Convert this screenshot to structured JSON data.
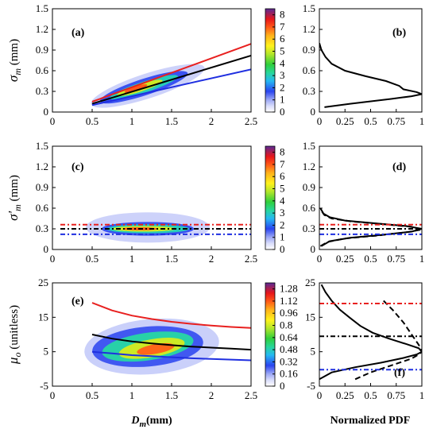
{
  "chart_data": [
    {
      "id": "a",
      "type": "heatmap",
      "panel_label": "(a)",
      "ylabel": "σ_m (mm)",
      "xlim": [
        0,
        2.5
      ],
      "ylim": [
        0,
        1.5
      ],
      "xticks": [
        "0",
        "0.5",
        "1",
        "1.5",
        "2",
        "2.5"
      ],
      "yticks": [
        "0",
        "0.3",
        "0.6",
        "0.9",
        "1.2",
        "1.5"
      ],
      "colorbar_ticks": [
        "0",
        "1",
        "2",
        "3",
        "4",
        "5",
        "6",
        "7",
        "8"
      ],
      "colorbar_range": [
        0,
        8.5
      ],
      "density_blobs": [
        {
          "cx": 1.2,
          "cy": 0.38,
          "rx": 0.75,
          "ry": 0.18,
          "rot": -18,
          "level": 0.6
        },
        {
          "cx": 1.15,
          "cy": 0.36,
          "rx": 0.58,
          "ry": 0.12,
          "rot": -18,
          "level": 1.6
        },
        {
          "cx": 1.15,
          "cy": 0.36,
          "rx": 0.45,
          "ry": 0.08,
          "rot": -18,
          "level": 3.0
        },
        {
          "cx": 1.1,
          "cy": 0.35,
          "rx": 0.3,
          "ry": 0.055,
          "rot": -18,
          "level": 5.0
        },
        {
          "cx": 1.05,
          "cy": 0.34,
          "rx": 0.15,
          "ry": 0.035,
          "rot": -18,
          "level": 7.0
        }
      ],
      "series": [
        {
          "color": "#e8201f",
          "x": [
            0.5,
            2.5
          ],
          "y": [
            0.15,
            0.99
          ]
        },
        {
          "color": "#000000",
          "x": [
            0.5,
            2.5
          ],
          "y": [
            0.12,
            0.82
          ]
        },
        {
          "color": "#1f2fe0",
          "x": [
            0.5,
            2.5
          ],
          "y": [
            0.1,
            0.62
          ]
        }
      ]
    },
    {
      "id": "b",
      "type": "line",
      "panel_label": "(b)",
      "xlim": [
        0,
        1
      ],
      "ylim": [
        0,
        1.5
      ],
      "xticks": [
        "0",
        "0.25",
        "0.5",
        "0.75",
        "1"
      ],
      "yticks": [
        "0",
        "0.3",
        "0.6",
        "0.9",
        "1.2",
        "1.5"
      ],
      "series": [
        {
          "color": "#000000",
          "dash": "none",
          "x": [
            0.05,
            0.3,
            0.7,
            0.9,
            1.0,
            0.95,
            0.82,
            0.78,
            0.65,
            0.45,
            0.25,
            0.12,
            0.06,
            0.02,
            0.0
          ],
          "y": [
            0.07,
            0.12,
            0.19,
            0.23,
            0.26,
            0.29,
            0.33,
            0.38,
            0.45,
            0.52,
            0.6,
            0.7,
            0.8,
            0.9,
            1.0
          ]
        }
      ]
    },
    {
      "id": "c",
      "type": "heatmap",
      "panel_label": "(c)",
      "ylabel": "σ'_m (mm)",
      "xlim": [
        0,
        2.5
      ],
      "ylim": [
        0,
        1.5
      ],
      "xticks": [
        "0",
        "0.5",
        "1",
        "1.5",
        "2",
        "2.5"
      ],
      "yticks": [
        "0",
        "0.3",
        "0.6",
        "0.9",
        "1.2",
        "1.5"
      ],
      "colorbar_ticks": [
        "0",
        "1",
        "2",
        "3",
        "4",
        "5",
        "6",
        "7",
        "8"
      ],
      "colorbar_range": [
        0,
        8.5
      ],
      "density_blobs": [
        {
          "cx": 1.2,
          "cy": 0.32,
          "rx": 0.78,
          "ry": 0.22,
          "rot": 0,
          "level": 0.6
        },
        {
          "cx": 1.2,
          "cy": 0.3,
          "rx": 0.58,
          "ry": 0.1,
          "rot": 0,
          "level": 1.6
        },
        {
          "cx": 1.2,
          "cy": 0.3,
          "rx": 0.52,
          "ry": 0.065,
          "rot": 0,
          "level": 3.0
        },
        {
          "cx": 1.15,
          "cy": 0.3,
          "rx": 0.4,
          "ry": 0.04,
          "rot": 0,
          "level": 5.0
        },
        {
          "cx": 1.1,
          "cy": 0.3,
          "rx": 0.22,
          "ry": 0.022,
          "rot": 0,
          "level": 7.0
        }
      ],
      "series": [
        {
          "color": "#e8201f",
          "dash": "6,3,2,3",
          "x": [
            0.1,
            2.5
          ],
          "y": [
            0.36,
            0.36
          ]
        },
        {
          "color": "#000000",
          "dash": "6,3,2,3",
          "x": [
            0.1,
            2.5
          ],
          "y": [
            0.3,
            0.3
          ]
        },
        {
          "color": "#1f2fe0",
          "dash": "6,3,2,3",
          "x": [
            0.1,
            2.5
          ],
          "y": [
            0.22,
            0.22
          ]
        }
      ]
    },
    {
      "id": "d",
      "type": "line",
      "panel_label": "(d)",
      "xlim": [
        0,
        1
      ],
      "ylim": [
        0,
        1.5
      ],
      "xticks": [
        "0",
        "0.25",
        "0.5",
        "0.75",
        "1"
      ],
      "yticks": [
        "0",
        "0.3",
        "0.6",
        "0.9",
        "1.2",
        "1.5"
      ],
      "series": [
        {
          "color": "#000000",
          "dash": "none",
          "x": [
            0.02,
            0.1,
            0.3,
            0.6,
            0.9,
            1.0,
            0.85,
            0.55,
            0.25,
            0.1,
            0.04,
            0.01
          ],
          "y": [
            0.05,
            0.12,
            0.17,
            0.21,
            0.26,
            0.3,
            0.34,
            0.38,
            0.42,
            0.47,
            0.52,
            0.6
          ]
        },
        {
          "color": "#000000",
          "dash": "7,4",
          "x": [
            0.01,
            0.08,
            0.25,
            0.55,
            0.85,
            1.0,
            0.9,
            0.6,
            0.3,
            0.12,
            0.05,
            0.01
          ],
          "y": [
            0.05,
            0.11,
            0.16,
            0.2,
            0.25,
            0.29,
            0.33,
            0.37,
            0.41,
            0.45,
            0.5,
            0.58
          ]
        },
        {
          "color": "#e8201f",
          "dash": "6,3,2,3",
          "x": [
            0,
            1
          ],
          "y": [
            0.36,
            0.36
          ]
        },
        {
          "color": "#000000",
          "dash": "6,3,2,3",
          "x": [
            0,
            1
          ],
          "y": [
            0.3,
            0.3
          ]
        },
        {
          "color": "#1f2fe0",
          "dash": "6,3,2,3",
          "x": [
            0,
            1
          ],
          "y": [
            0.22,
            0.22
          ]
        }
      ]
    },
    {
      "id": "e",
      "type": "heatmap",
      "panel_label": "(e)",
      "ylabel": "μ_o (unitless)",
      "xlabel": "D_m(mm)",
      "xlim": [
        0,
        2.5
      ],
      "ylim": [
        -5,
        25
      ],
      "xticks": [
        "0",
        "0.5",
        "1",
        "1.5",
        "2",
        "2.5"
      ],
      "yticks": [
        "-5",
        "5",
        "15",
        "25"
      ],
      "ytick_values": [
        -5,
        5,
        15,
        25
      ],
      "colorbar_ticks": [
        "0",
        "0.16",
        "0.32",
        "0.48",
        "0.64",
        "0.8",
        "0.96",
        "1.12",
        "1.28"
      ],
      "colorbar_range": [
        0,
        1.36
      ],
      "density_blobs": [
        {
          "cx": 1.25,
          "cy": 6.5,
          "rx": 0.85,
          "ry": 8.0,
          "rot": -5,
          "level": 0.1
        },
        {
          "cx": 1.2,
          "cy": 6.5,
          "rx": 0.7,
          "ry": 5.8,
          "rot": -5,
          "level": 0.25
        },
        {
          "cx": 1.2,
          "cy": 6.5,
          "rx": 0.58,
          "ry": 4.0,
          "rot": -8,
          "level": 0.5
        },
        {
          "cx": 1.25,
          "cy": 6.0,
          "rx": 0.42,
          "ry": 2.6,
          "rot": -10,
          "level": 0.8
        },
        {
          "cx": 1.3,
          "cy": 5.8,
          "rx": 0.24,
          "ry": 1.4,
          "rot": -10,
          "level": 1.1
        }
      ],
      "series": [
        {
          "color": "#e8201f",
          "x": [
            0.5,
            0.75,
            1.0,
            1.25,
            1.5,
            1.75,
            2.0,
            2.25,
            2.5
          ],
          "y": [
            19.2,
            17.0,
            15.5,
            14.5,
            13.7,
            13.1,
            12.6,
            12.2,
            11.9
          ]
        },
        {
          "color": "#000000",
          "x": [
            0.5,
            0.75,
            1.0,
            1.25,
            1.5,
            1.75,
            2.0,
            2.25,
            2.5
          ],
          "y": [
            10.0,
            8.8,
            8.0,
            7.4,
            6.9,
            6.5,
            6.2,
            5.9,
            5.6
          ]
        },
        {
          "color": "#1f2fe0",
          "x": [
            0.5,
            0.75,
            1.0,
            1.25,
            1.5,
            1.75,
            2.0,
            2.25,
            2.5
          ],
          "y": [
            5.0,
            4.5,
            4.0,
            3.7,
            3.4,
            3.1,
            2.9,
            2.7,
            2.5
          ]
        }
      ]
    },
    {
      "id": "f",
      "type": "line",
      "panel_label": "(f)",
      "xlabel": "Normalized PDF",
      "xlim": [
        0,
        1
      ],
      "ylim": [
        -5,
        25
      ],
      "xticks": [
        "0",
        "0.25",
        "0.5",
        "0.75",
        "1"
      ],
      "yticks": [
        "-5",
        "5",
        "15",
        "25"
      ],
      "ytick_values": [
        -5,
        5,
        15,
        25
      ],
      "series": [
        {
          "color": "#000000",
          "dash": "none",
          "x": [
            0.0,
            0.12,
            0.35,
            0.6,
            0.82,
            0.95,
            1.0,
            0.97,
            0.85,
            0.68,
            0.52,
            0.4,
            0.3,
            0.2,
            0.12,
            0.06,
            0.02
          ],
          "y": [
            -3.0,
            -1.0,
            0.5,
            1.8,
            3.2,
            4.2,
            5.0,
            6.0,
            7.2,
            8.8,
            10.5,
            12.5,
            14.8,
            17.2,
            19.8,
            22.3,
            24.5
          ]
        },
        {
          "color": "#000000",
          "dash": "7,4",
          "x": [
            0.35,
            0.5,
            0.75,
            0.9,
            0.97,
            1.0,
            0.97,
            0.9,
            0.82,
            0.72,
            0.62
          ],
          "y": [
            -3.0,
            -1.0,
            1.5,
            3.0,
            4.2,
            5.0,
            7.0,
            10.0,
            13.5,
            17.0,
            20.0
          ]
        },
        {
          "color": "#e8201f",
          "dash": "6,3,2,3",
          "x": [
            0,
            1
          ],
          "y": [
            19.0,
            19.0
          ]
        },
        {
          "color": "#000000",
          "dash": "6,3,2,3",
          "x": [
            0,
            1
          ],
          "y": [
            9.5,
            9.5
          ]
        },
        {
          "color": "#1f2fe0",
          "dash": "6,3,2,3",
          "x": [
            0,
            1
          ],
          "y": [
            -0.2,
            -0.2
          ]
        }
      ]
    }
  ]
}
